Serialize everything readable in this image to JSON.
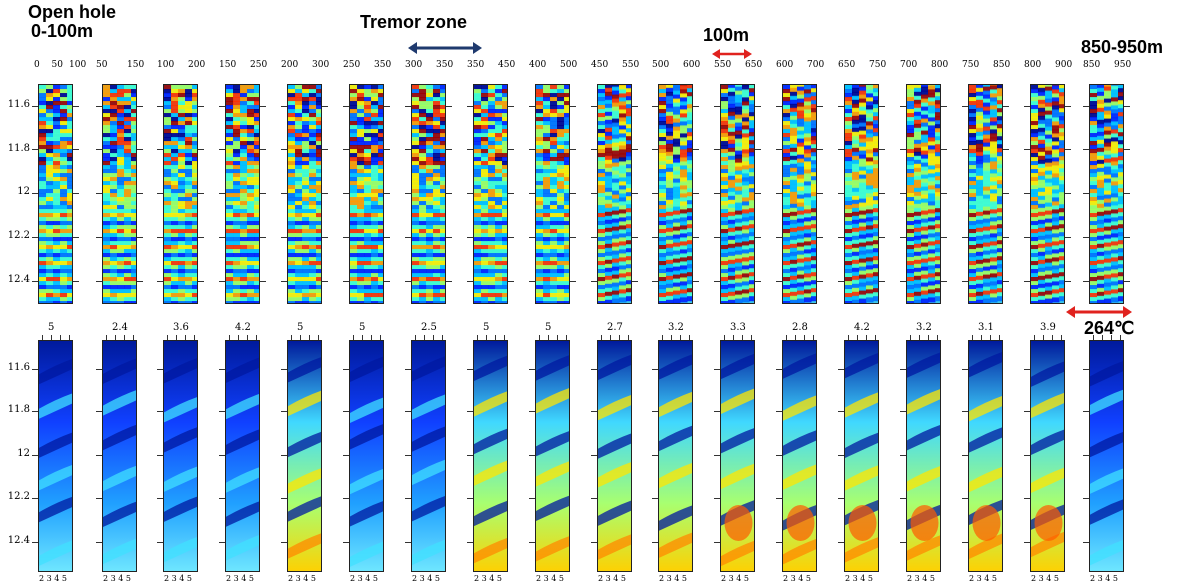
{
  "title_left": [
    "Open hole",
    "0-100m"
  ],
  "title_tremor": "Tremor zone",
  "title_100m": "100m",
  "title_right": "850-950m",
  "temperature_label": "264℃",
  "depth_labels": [
    "11.6",
    "11.8",
    "12",
    "12.2",
    "12.4"
  ],
  "top_ranges": [
    [
      "0",
      "50",
      "100"
    ],
    [
      "50",
      "150"
    ],
    [
      "100",
      "200"
    ],
    [
      "150",
      "250"
    ],
    [
      "200",
      "300"
    ],
    [
      "250",
      "350"
    ],
    [
      "300",
      "350"
    ],
    [
      "350",
      "450"
    ],
    [
      "400",
      "500"
    ],
    [
      "450",
      "550"
    ],
    [
      "500",
      "600"
    ],
    [
      "550",
      "650"
    ],
    [
      "600",
      "700"
    ],
    [
      "650",
      "750"
    ],
    [
      "700",
      "800"
    ],
    [
      "750",
      "850"
    ],
    [
      "800",
      "900"
    ],
    [
      "850",
      "950"
    ]
  ],
  "bottom_values": [
    "5",
    "2.4",
    "3.6",
    "4.2",
    "5",
    "5",
    "2.5",
    "5",
    "5",
    "2.7",
    "3.2",
    "3.3",
    "2.8",
    "4.2",
    "3.2",
    "3.1",
    "3.9"
  ],
  "bottom_axis_ticks": "2 3 4 5",
  "colors": {
    "arrow_tremor": "#1f3a6e",
    "arrow_red": "#e0221e"
  }
}
